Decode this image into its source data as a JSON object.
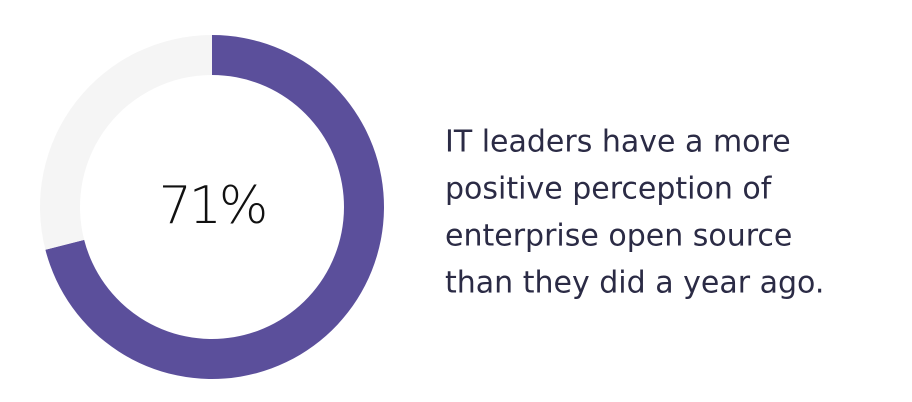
{
  "chart_data": {
    "type": "donut",
    "values": [
      71,
      29
    ],
    "value_labels": [
      "71%",
      null
    ],
    "colors": [
      "#5b4f9b",
      "#f5f5f5"
    ],
    "annotation": [
      "IT leaders have a more",
      "positive perception of",
      "enterprise open source",
      "than they did a year ago."
    ]
  }
}
